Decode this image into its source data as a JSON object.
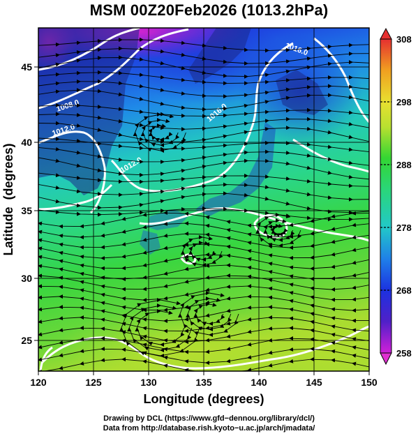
{
  "title": "MSM 00Z20Feb2026 (1013.2hPa)",
  "xlabel": "Longitude (degrees)",
  "ylabel": "Latitude  (degrees)",
  "x_ticks": [
    "120",
    "125",
    "130",
    "135",
    "140",
    "145",
    "150"
  ],
  "y_ticks": [
    "25",
    "30",
    "35",
    "40",
    "45"
  ],
  "colorbar": {
    "ticks": [
      "258",
      "268",
      "278",
      "288",
      "298",
      "308"
    ],
    "min": 258,
    "max": 308
  },
  "contour_labels": [
    "1016.0",
    "1008.0",
    "1012.0",
    "1012.0",
    "1016.0"
  ],
  "credits": {
    "line1": "Drawing by DCL (https://www.gfd−dennou.org/library/dcl/)",
    "line2": "Data from http://database.rish.kyoto−u.ac.jp/arch/jmadata/"
  },
  "colors": {
    "cold": "#1a1ae0",
    "mid": "#22c8c8",
    "warm": "#33d633",
    "hot": "#e0e033",
    "extreme_cold": "#e62de6",
    "extreme_hot": "#e63232"
  }
}
